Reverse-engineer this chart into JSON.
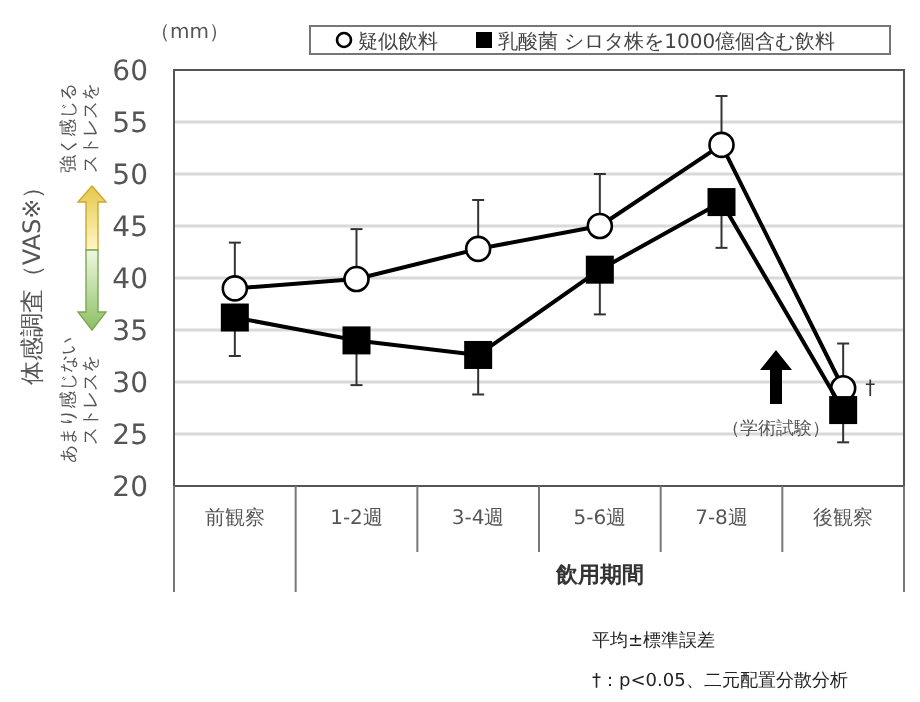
{
  "chart_data": {
    "type": "line",
    "ylabel": "体感調査（VAS※）",
    "xlabel": "飲用期間",
    "categories": [
      "前観察",
      "1-2週",
      "3-4週",
      "5-6週",
      "7-8週",
      "後観察"
    ],
    "series": [
      {
        "name": "疑似飲料",
        "color": "#000000",
        "marker": "circle",
        "values": [
          39.0,
          39.9,
          42.8,
          45.0,
          52.8,
          29.4
        ],
        "errors": [
          [
            39.0,
            43.4
          ],
          [
            39.9,
            44.7
          ],
          [
            42.8,
            47.5
          ],
          [
            45.0,
            50.0
          ],
          [
            52.8,
            57.5
          ],
          [
            29.4,
            33.7
          ]
        ]
      },
      {
        "name": "乳酸菌 シロタ株を1000億個含む飲料",
        "color": "#000000",
        "marker": "square",
        "values": [
          36.2,
          34.0,
          32.6,
          40.8,
          47.3,
          27.3
        ],
        "errors": [
          [
            32.5,
            36.2
          ],
          [
            29.7,
            34.0
          ],
          [
            28.8,
            32.6
          ],
          [
            36.5,
            40.8
          ],
          [
            42.9,
            47.3
          ],
          [
            24.2,
            27.3
          ]
        ]
      }
    ],
    "ylim": [
      20,
      60
    ],
    "yticks": [
      20,
      25,
      30,
      35,
      40,
      45,
      50,
      55,
      60
    ],
    "grid": "y",
    "legend": "top",
    "line_style": "solid",
    "annotations": [
      "（mm）",
      "ストレスを",
      "強く感じる",
      "ストレスを",
      "あまり感じない",
      "（学術試験）",
      {
        "text": "†",
        "x": "後観察",
        "y": 29.4
      },
      "平均±標準誤差",
      "†：p<0.05、二元配置分散分析"
    ]
  }
}
